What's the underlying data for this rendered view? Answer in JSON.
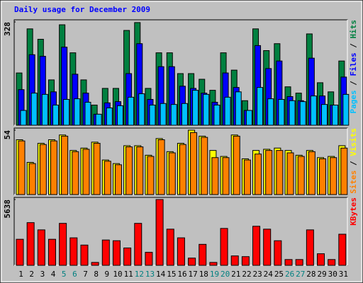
{
  "title": "Daily usage for December 2009",
  "title_color": "#0000ff",
  "legend_separator": "/",
  "chart_data": [
    {
      "type": "bar",
      "ylim": [
        0,
        328
      ],
      "yticks": [
        328
      ],
      "series": [
        {
          "name": "Hits",
          "color": "#008040",
          "values": [
            166,
            306,
            273,
            144,
            319,
            230,
            144,
            64,
            117,
            117,
            301,
            326,
            117,
            230,
            230,
            164,
            164,
            146,
            111,
            230,
            175,
            78,
            306,
            237,
            259,
            122,
            102,
            290,
            135,
            106,
            204
          ]
        },
        {
          "name": "Files",
          "color": "#0000ff",
          "values": [
            113,
            224,
            219,
            106,
            248,
            162,
            102,
            35,
            71,
            75,
            164,
            259,
            82,
            186,
            186,
            124,
            117,
            102,
            73,
            166,
            120,
            47,
            253,
            180,
            204,
            91,
            78,
            213,
            93,
            64,
            153
          ]
        },
        {
          "name": "Pages",
          "color": "#00c0ff",
          "values": [
            47,
            102,
            98,
            64,
            82,
            84,
            73,
            35,
            55,
            62,
            89,
            100,
            64,
            69,
            66,
            69,
            111,
            98,
            64,
            89,
            106,
            47,
            120,
            84,
            82,
            78,
            75,
            93,
            66,
            64,
            98
          ]
        }
      ]
    },
    {
      "type": "bar",
      "ylim": [
        0,
        54
      ],
      "yticks": [
        54
      ],
      "series": [
        {
          "name": "Visits",
          "color": "#ffff00",
          "values": [
            46,
            27,
            43,
            46,
            50,
            37,
            39,
            44,
            29,
            26,
            41,
            41,
            33,
            47,
            36,
            43,
            54,
            49,
            37,
            32,
            50,
            30,
            37,
            38,
            39,
            37,
            33,
            37,
            31,
            32,
            41
          ]
        },
        {
          "name": "Sites",
          "color": "#ff8000",
          "values": [
            45,
            26,
            42,
            45,
            49,
            36,
            38,
            43,
            28,
            25,
            40,
            40,
            32,
            46,
            35,
            42,
            52,
            48,
            31,
            31,
            49,
            29,
            34,
            37,
            37,
            35,
            32,
            36,
            30,
            31,
            39
          ]
        }
      ]
    },
    {
      "type": "bar",
      "ylim": [
        0,
        5638
      ],
      "yticks": [
        5638
      ],
      "categories": [
        "1",
        "2",
        "3",
        "4",
        "5",
        "6",
        "7",
        "8",
        "9",
        "10",
        "11",
        "12",
        "13",
        "14",
        "15",
        "16",
        "17",
        "18",
        "19",
        "20",
        "21",
        "22",
        "23",
        "24",
        "25",
        "26",
        "27",
        "28",
        "29",
        "30",
        "31"
      ],
      "category_label_colors": [
        "#000000",
        "#000000",
        "#000000",
        "#000000",
        "#008080",
        "#008080",
        "#000000",
        "#000000",
        "#000000",
        "#000000",
        "#000000",
        "#008080",
        "#008080",
        "#000000",
        "#000000",
        "#000000",
        "#000000",
        "#000000",
        "#008080",
        "#008080",
        "#000000",
        "#000000",
        "#000000",
        "#000000",
        "#000000",
        "#008080",
        "#008080",
        "#000000",
        "#000000",
        "#000000",
        "#000000"
      ],
      "series": [
        {
          "name": "KBytes",
          "color": "#ff0000",
          "values": [
            2232,
            3658,
            3038,
            2232,
            3596,
            2356,
            1736,
            248,
            2170,
            2108,
            1488,
            3596,
            1116,
            5638,
            3100,
            2356,
            620,
            1798,
            248,
            3162,
            806,
            744,
            3348,
            3100,
            2108,
            496,
            496,
            3038,
            992,
            496,
            2666
          ]
        }
      ]
    }
  ]
}
